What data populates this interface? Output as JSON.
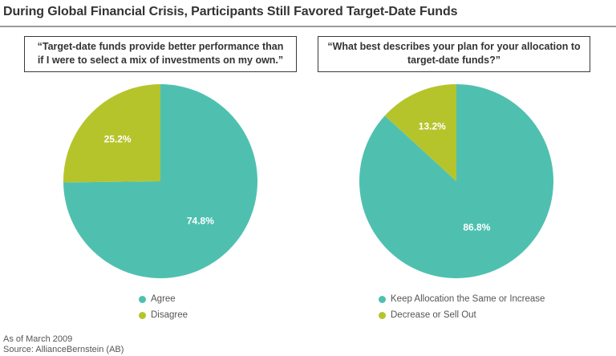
{
  "title": "During Global Financial Crisis, Participants Still Favored Target-Date Funds",
  "colors": {
    "teal": "#4fc0b0",
    "lime": "#b6c42c",
    "text": "#3a3a3a"
  },
  "chart_data": [
    {
      "type": "pie",
      "title_lines": [
        "“Target-date funds provide better performance than",
        "if I were to select a mix of investments on my own.”"
      ],
      "slices": [
        {
          "name": "Agree",
          "value": 74.8,
          "label": "74.8%",
          "color": "#4fc0b0"
        },
        {
          "name": "Disagree",
          "value": 25.2,
          "label": "25.2%",
          "color": "#b6c42c"
        }
      ],
      "legend": [
        "Agree",
        "Disagree"
      ],
      "legend_position": "bottom"
    },
    {
      "type": "pie",
      "title_lines": [
        "“What best describes your plan for your allocation to",
        "target-date funds?”"
      ],
      "slices": [
        {
          "name": "Keep Allocation the Same or Increase",
          "value": 86.8,
          "label": "86.8%",
          "color": "#4fc0b0"
        },
        {
          "name": "Decrease or Sell Out",
          "value": 13.2,
          "label": "13.2%",
          "color": "#b6c42c"
        }
      ],
      "legend": [
        "Keep Allocation the Same or Increase",
        "Decrease or Sell Out"
      ],
      "legend_position": "bottom"
    }
  ],
  "footnotes": {
    "date": "As of March 2009",
    "source": "Source: AllianceBernstein (AB)"
  }
}
